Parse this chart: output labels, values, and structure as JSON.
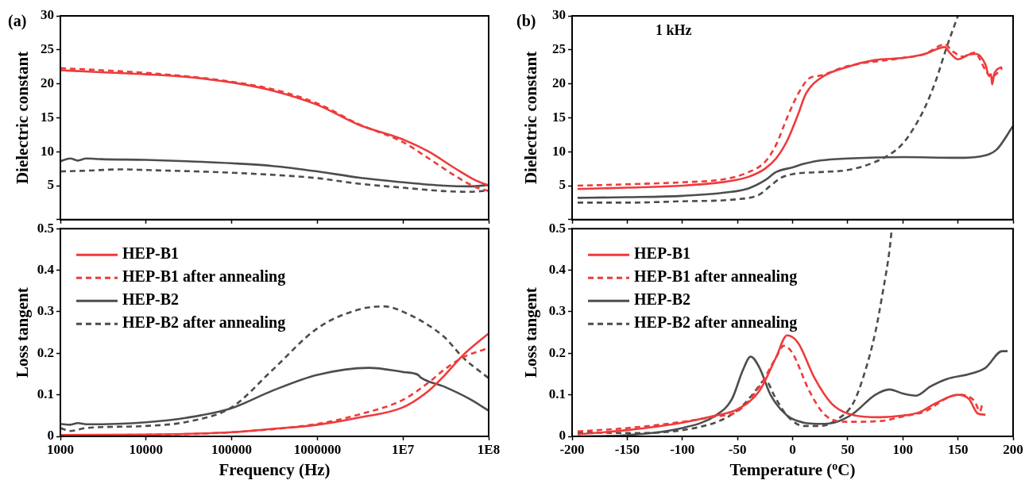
{
  "chart_data": [
    {
      "type": "line",
      "title": "(a)",
      "ylabel": "Dielectric constant",
      "log": "x",
      "xlim": [
        1000,
        100000000
      ],
      "xticks": [
        1000,
        10000,
        100000,
        1000000,
        10000000,
        100000000
      ],
      "ylim": [
        0,
        30
      ],
      "yticks": [
        {
          "value": 0,
          "label": null
        },
        5,
        10,
        15,
        20,
        25,
        30
      ],
      "tick_labels": "y",
      "grid": false,
      "legend": false,
      "series": [
        {
          "color": "#ee3b3b",
          "line_style": "solid",
          "x": [
            1000,
            3000,
            10000,
            30000,
            100000,
            300000,
            1000000,
            3000000,
            10000000,
            20000000,
            40000000,
            70000000,
            100000000
          ],
          "values": [
            22.0,
            21.7,
            21.4,
            21.0,
            20.2,
            19.0,
            16.9,
            14.0,
            11.8,
            10.0,
            7.6,
            5.8,
            5.0
          ]
        },
        {
          "color": "#ee3b3b",
          "line_style": "dashed",
          "x": [
            1000,
            3000,
            10000,
            30000,
            100000,
            300000,
            1000000,
            3000000,
            10000000,
            20000000,
            40000000,
            70000000,
            100000000
          ],
          "values": [
            22.3,
            22.0,
            21.6,
            21.1,
            20.3,
            19.2,
            17.1,
            14.1,
            11.4,
            9.0,
            6.5,
            4.8,
            4.2
          ]
        },
        {
          "color": "#4d4d4d",
          "line_style": "solid",
          "x": [
            1000,
            1300,
            1600,
            2000,
            3000,
            10000,
            30000,
            100000,
            300000,
            1000000,
            3000000,
            10000000,
            30000000,
            60000000,
            100000000
          ],
          "values": [
            8.6,
            9.0,
            8.7,
            9.0,
            8.9,
            8.8,
            8.6,
            8.3,
            7.9,
            7.1,
            6.2,
            5.5,
            5.0,
            4.9,
            5.1
          ]
        },
        {
          "color": "#4d4d4d",
          "line_style": "dashed",
          "x": [
            1000,
            2000,
            5000,
            10000,
            100000,
            1000000,
            3000000,
            10000000,
            30000000,
            60000000,
            100000000
          ],
          "values": [
            7.1,
            7.2,
            7.4,
            7.3,
            6.9,
            6.1,
            5.3,
            4.7,
            4.2,
            4.1,
            4.3
          ]
        }
      ]
    },
    {
      "type": "line",
      "xlabel": "Frequency (Hz)",
      "ylabel": "Loss tangent",
      "log": "x",
      "xlim": [
        1000,
        100000000
      ],
      "xticks": [
        1000,
        10000,
        100000,
        1000000,
        {
          "value": 10000000,
          "label": "1E7"
        },
        {
          "value": 100000000,
          "label": "1E8"
        }
      ],
      "ylim": [
        0,
        0.5
      ],
      "yticks": [
        0.0,
        0.1,
        0.2,
        0.3,
        0.4,
        0.5
      ],
      "grid": false,
      "legend": "top left",
      "series": [
        {
          "name": "HEP-B1",
          "color": "#ee3b3b",
          "line_style": "solid",
          "x": [
            1000,
            10000,
            100000,
            300000,
            1000000,
            3000000,
            10000000,
            20000000,
            30000000,
            50000000,
            100000000
          ],
          "values": [
            0.003,
            0.004,
            0.01,
            0.018,
            0.028,
            0.045,
            0.07,
            0.11,
            0.145,
            0.195,
            0.248
          ]
        },
        {
          "name": "HEP-B1 after annealing",
          "color": "#ee3b3b",
          "line_style": "dashed",
          "x": [
            1000,
            10000,
            100000,
            1000000,
            3000000,
            10000000,
            20000000,
            30000000,
            50000000,
            100000000
          ],
          "values": [
            0.003,
            0.004,
            0.01,
            0.03,
            0.052,
            0.088,
            0.13,
            0.16,
            0.19,
            0.213
          ]
        },
        {
          "name": "HEP-B2",
          "color": "#4d4d4d",
          "line_style": "solid",
          "x": [
            1000,
            1300,
            1600,
            2000,
            10000,
            30000,
            100000,
            300000,
            1000000,
            4000000,
            10000000,
            15000000,
            16000000,
            30000000,
            60000000,
            100000000
          ],
          "values": [
            0.03,
            0.028,
            0.032,
            0.029,
            0.034,
            0.045,
            0.068,
            0.11,
            0.148,
            0.165,
            0.155,
            0.148,
            0.142,
            0.12,
            0.09,
            0.062
          ]
        },
        {
          "name": "HEP-B2 after annealing",
          "color": "#4d4d4d",
          "line_style": "dashed",
          "x": [
            1000,
            1300,
            2000,
            10000,
            30000,
            100000,
            300000,
            1000000,
            3000000,
            6000000,
            10000000,
            30000000,
            50000000,
            100000000
          ],
          "values": [
            0.02,
            0.013,
            0.02,
            0.025,
            0.035,
            0.07,
            0.16,
            0.26,
            0.305,
            0.313,
            0.3,
            0.24,
            0.19,
            0.14
          ]
        }
      ]
    },
    {
      "type": "line",
      "title": "(b)",
      "ylabel": "Dielectric constant",
      "annotations": [
        "1 kHz"
      ],
      "xlim": [
        -200,
        200
      ],
      "xticks": [
        -200,
        -150,
        -100,
        -50,
        0,
        50,
        100,
        150,
        200
      ],
      "ylim": [
        0,
        30
      ],
      "yticks": [
        {
          "value": 0,
          "label": null
        },
        5,
        10,
        15,
        20,
        25,
        30
      ],
      "tick_labels": "y",
      "grid": false,
      "legend": false,
      "series": [
        {
          "color": "#ee3b3b",
          "line_style": "solid",
          "x": [
            -195,
            -150,
            -100,
            -60,
            -40,
            -25,
            -15,
            -5,
            5,
            12,
            25,
            50,
            75,
            100,
            120,
            138,
            143,
            150,
            160,
            167,
            175,
            178,
            180,
            181,
            183,
            190
          ],
          "values": [
            4.5,
            4.7,
            5.0,
            5.6,
            6.3,
            7.5,
            9.0,
            11.6,
            15.5,
            18.5,
            20.8,
            22.5,
            23.5,
            23.8,
            24.4,
            25.4,
            24.5,
            23.6,
            24.3,
            24.4,
            22.8,
            21.2,
            21.4,
            19.9,
            21.5,
            22.5
          ]
        },
        {
          "color": "#ee3b3b",
          "line_style": "dashed",
          "x": [
            -195,
            -150,
            -100,
            -60,
            -40,
            -25,
            -15,
            -5,
            5,
            15,
            25,
            50,
            100,
            120,
            138,
            145,
            155,
            165,
            175,
            180,
            190
          ],
          "values": [
            5.0,
            5.2,
            5.5,
            6.0,
            7.0,
            8.5,
            11.0,
            15.0,
            18.5,
            20.8,
            21.2,
            22.6,
            23.8,
            24.4,
            25.8,
            24.8,
            24.0,
            24.6,
            22.0,
            21.0,
            22.3
          ]
        },
        {
          "color": "#4d4d4d",
          "line_style": "solid",
          "x": [
            -195,
            -150,
            -100,
            -60,
            -40,
            -25,
            -15,
            0,
            10,
            25,
            50,
            100,
            150,
            170,
            185,
            200
          ],
          "values": [
            3.2,
            3.3,
            3.5,
            4.0,
            4.6,
            5.8,
            7.0,
            7.7,
            8.2,
            8.7,
            9.0,
            9.2,
            9.1,
            9.3,
            10.3,
            13.8
          ]
        },
        {
          "color": "#4d4d4d",
          "line_style": "dashed",
          "x": [
            -195,
            -150,
            -100,
            -50,
            -30,
            -20,
            -10,
            0,
            25,
            50,
            75,
            90,
            100,
            110,
            120,
            130,
            140,
            150
          ],
          "values": [
            2.5,
            2.5,
            2.7,
            3.0,
            3.7,
            5.0,
            6.2,
            6.7,
            7.0,
            7.3,
            8.5,
            9.8,
            11.2,
            13.5,
            16.5,
            20.5,
            25.5,
            30
          ]
        }
      ]
    },
    {
      "type": "line",
      "xlabel": "Temperature ($^{o}$C)",
      "ylabel": "Loss tangent",
      "xlim": [
        -200,
        200
      ],
      "xticks": [
        -200,
        -150,
        -100,
        -50,
        0,
        50,
        100,
        150,
        200
      ],
      "ylim": [
        0,
        0.5
      ],
      "yticks": [
        0.0,
        0.1,
        0.2,
        0.3,
        0.4,
        0.5
      ],
      "grid": false,
      "legend": "top left",
      "series": [
        {
          "name": "HEP-B1",
          "color": "#ee3b3b",
          "line_style": "solid",
          "x": [
            -195,
            -150,
            -100,
            -70,
            -50,
            -30,
            -15,
            -5,
            5,
            20,
            35,
            50,
            80,
            100,
            115,
            130,
            150,
            160,
            168,
            175
          ],
          "values": [
            0.005,
            0.015,
            0.033,
            0.05,
            0.065,
            0.11,
            0.19,
            0.243,
            0.225,
            0.14,
            0.08,
            0.055,
            0.046,
            0.05,
            0.058,
            0.08,
            0.1,
            0.09,
            0.055,
            0.052
          ]
        },
        {
          "name": "HEP-B1 after annealing",
          "color": "#ee3b3b",
          "line_style": "dashed",
          "x": [
            -195,
            -150,
            -100,
            -70,
            -50,
            -30,
            -15,
            -8,
            0,
            15,
            30,
            50,
            80,
            100,
            120,
            140,
            150,
            165,
            170,
            172
          ],
          "values": [
            0.012,
            0.02,
            0.035,
            0.048,
            0.06,
            0.12,
            0.19,
            0.218,
            0.2,
            0.11,
            0.05,
            0.035,
            0.037,
            0.048,
            0.06,
            0.092,
            0.1,
            0.085,
            0.06,
            0.078
          ]
        },
        {
          "name": "HEP-B2",
          "color": "#4d4d4d",
          "line_style": "solid",
          "x": [
            -195,
            -150,
            -100,
            -70,
            -55,
            -45,
            -38,
            -30,
            -20,
            -5,
            10,
            25,
            40,
            55,
            75,
            88,
            100,
            112,
            125,
            140,
            160,
            175,
            190,
            195
          ],
          "values": [
            0,
            0.003,
            0.02,
            0.05,
            0.09,
            0.16,
            0.192,
            0.165,
            0.1,
            0.05,
            0.033,
            0.03,
            0.035,
            0.055,
            0.1,
            0.113,
            0.103,
            0.098,
            0.12,
            0.138,
            0.15,
            0.165,
            0.205,
            0.205
          ]
        },
        {
          "name": "HEP-B2 after annealing",
          "color": "#4d4d4d",
          "line_style": "dashed",
          "x": [
            -195,
            -150,
            -100,
            -60,
            -45,
            -35,
            -25,
            -15,
            -5,
            10,
            25,
            40,
            55,
            65,
            75,
            82,
            88,
            90
          ],
          "values": [
            0.01,
            0.008,
            0.015,
            0.045,
            0.075,
            0.105,
            0.135,
            0.09,
            0.05,
            0.025,
            0.025,
            0.04,
            0.08,
            0.15,
            0.25,
            0.35,
            0.45,
            0.5
          ]
        }
      ]
    }
  ]
}
